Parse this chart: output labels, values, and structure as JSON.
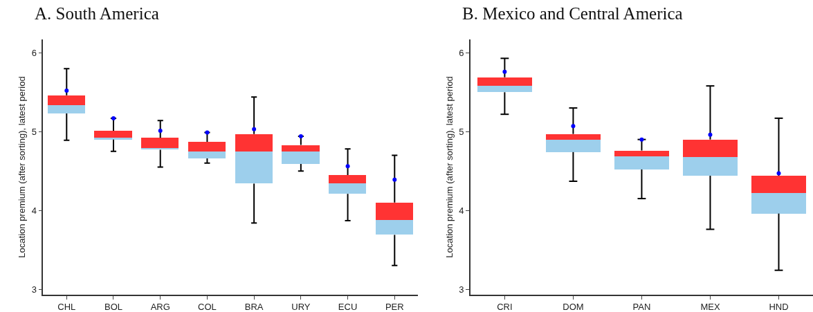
{
  "chart_data": [
    {
      "type": "box",
      "title": "A. South America",
      "ylabel": "Location premium (after sorting), latest period",
      "categories": [
        "CHL",
        "BOL",
        "ARG",
        "COL",
        "BRA",
        "URY",
        "ECU",
        "PER"
      ],
      "series": [
        {
          "color": "#9dcfec",
          "boxes": [
            {
              "low": 4.89,
              "q1": 5.23,
              "median": 5.34,
              "q3": 5.46,
              "high": 5.8
            },
            {
              "low": 4.75,
              "q1": 4.9,
              "median": 4.92,
              "q3": 5.01,
              "high": 5.17
            },
            {
              "low": 4.55,
              "q1": 4.77,
              "median": 4.79,
              "q3": 4.92,
              "high": 5.14
            },
            {
              "low": 4.6,
              "q1": 4.66,
              "median": 4.75,
              "q3": 4.87,
              "high": 4.99
            },
            {
              "low": 3.84,
              "q1": 4.34,
              "median": 4.75,
              "q3": 4.97,
              "high": 5.44
            },
            {
              "low": 4.5,
              "q1": 4.59,
              "median": 4.75,
              "q3": 4.83,
              "high": 4.94
            },
            {
              "low": 3.87,
              "q1": 4.21,
              "median": 4.34,
              "q3": 4.45,
              "high": 4.78
            },
            {
              "low": 3.3,
              "q1": 3.69,
              "median": 3.88,
              "q3": 4.1,
              "high": 4.7
            }
          ]
        },
        {
          "type": "scatter",
          "color": "#0000ff",
          "values": [
            5.52,
            5.17,
            5.01,
            4.99,
            5.03,
            4.94,
            4.56,
            4.39
          ]
        }
      ],
      "ylim": [
        2.93,
        6.17
      ],
      "yticks": [
        3,
        4,
        5,
        6
      ],
      "grid": false
    },
    {
      "type": "box",
      "title": "B. Mexico and Central America",
      "ylabel": "Location premium (after sorting), latest period",
      "categories": [
        "CRI",
        "DOM",
        "PAN",
        "MEX",
        "HND"
      ],
      "series": [
        {
          "color": "#9dcfec",
          "boxes": [
            {
              "low": 5.22,
              "q1": 5.5,
              "median": 5.58,
              "q3": 5.69,
              "high": 5.93
            },
            {
              "low": 4.37,
              "q1": 4.74,
              "median": 4.9,
              "q3": 4.97,
              "high": 5.3
            },
            {
              "low": 4.15,
              "q1": 4.52,
              "median": 4.69,
              "q3": 4.76,
              "high": 4.9
            },
            {
              "low": 3.76,
              "q1": 4.44,
              "median": 4.68,
              "q3": 4.9,
              "high": 5.58
            },
            {
              "low": 3.24,
              "q1": 3.96,
              "median": 4.22,
              "q3": 4.44,
              "high": 5.17
            }
          ]
        },
        {
          "type": "scatter",
          "color": "#0000ff",
          "values": [
            5.76,
            5.07,
            4.9,
            4.96,
            4.47
          ]
        }
      ],
      "ylim": [
        2.93,
        6.17
      ],
      "yticks": [
        3,
        4,
        5,
        6
      ],
      "grid": false
    }
  ]
}
